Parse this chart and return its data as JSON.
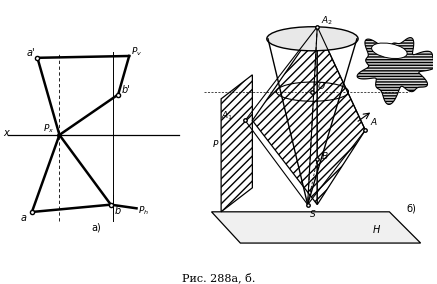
{
  "fig_width": 4.37,
  "fig_height": 2.84,
  "dpi": 100,
  "bg_color": "#ffffff",
  "caption": "Рис. 288а, б.",
  "label_a": "а)",
  "label_b": "б)"
}
